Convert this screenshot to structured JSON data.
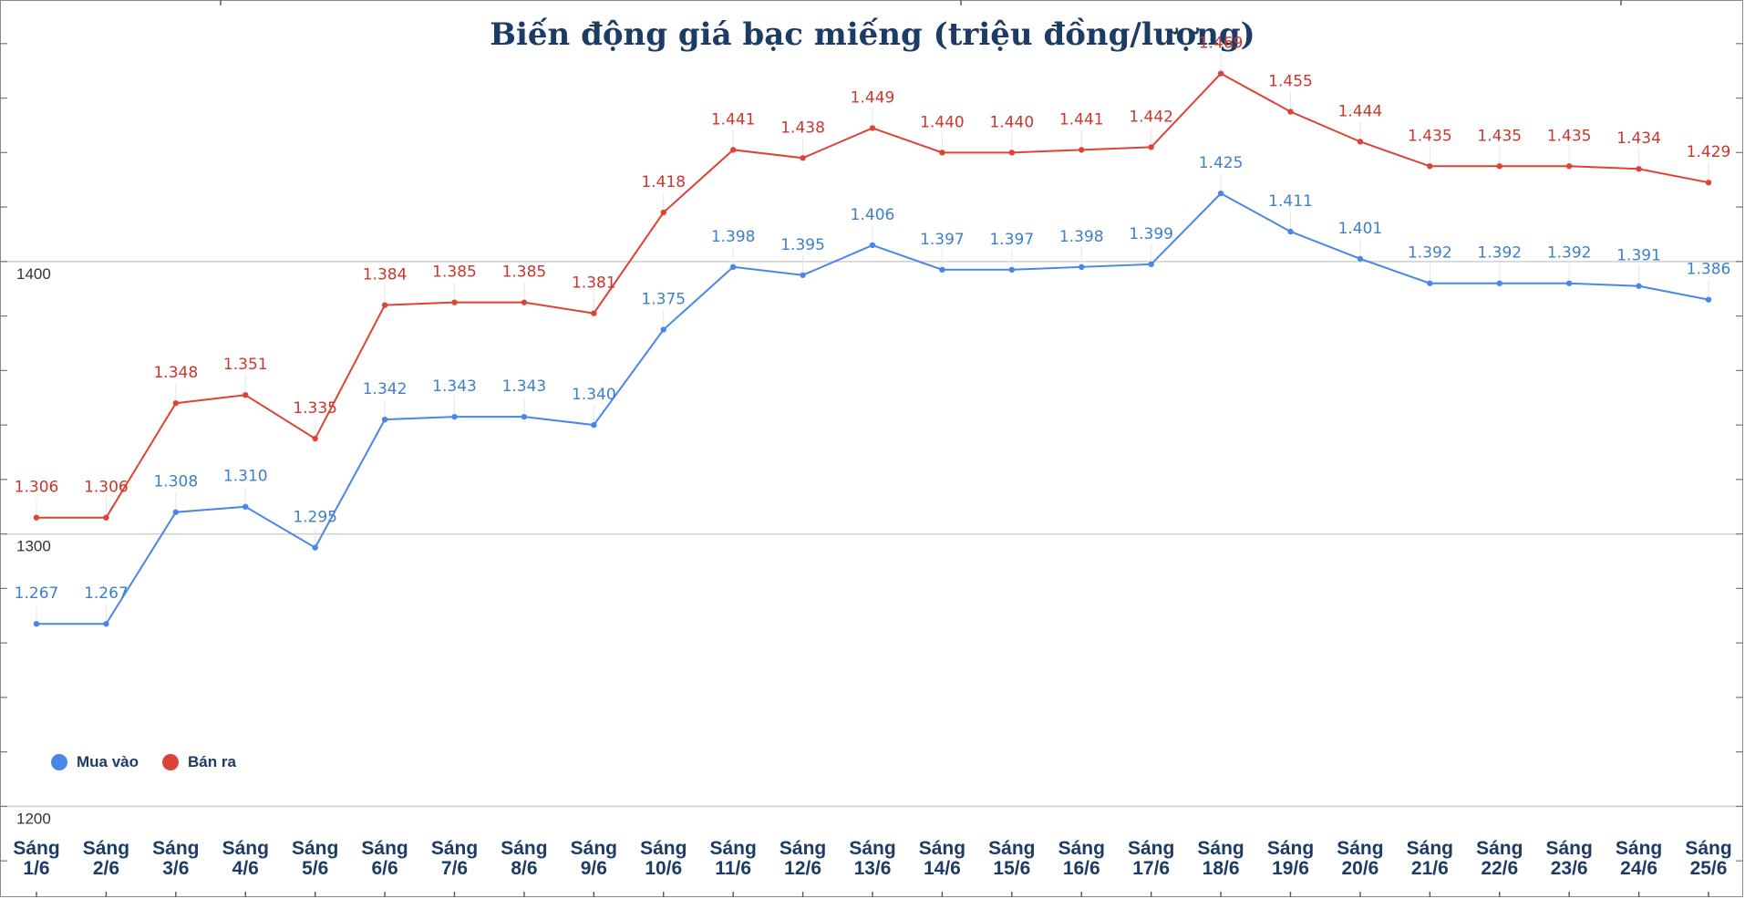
{
  "chart_data": {
    "type": "line",
    "title": "Biến động giá bạc miếng (triệu đồng/lượng)",
    "xlabel": "",
    "ylabel": "",
    "ylim": [
      1166,
      1496
    ],
    "y_ticks": [
      1200,
      1300,
      1400
    ],
    "grid": true,
    "legend_position": "bottom-left",
    "categories": [
      [
        "Sáng",
        "1/6"
      ],
      [
        "Sáng",
        "2/6"
      ],
      [
        "Sáng",
        "3/6"
      ],
      [
        "Sáng",
        "4/6"
      ],
      [
        "Sáng",
        "5/6"
      ],
      [
        "Sáng",
        "6/6"
      ],
      [
        "Sáng",
        "7/6"
      ],
      [
        "Sáng",
        "8/6"
      ],
      [
        "Sáng",
        "9/6"
      ],
      [
        "Sáng",
        "10/6"
      ],
      [
        "Sáng",
        "11/6"
      ],
      [
        "Sáng",
        "12/6"
      ],
      [
        "Sáng",
        "13/6"
      ],
      [
        "Sáng",
        "14/6"
      ],
      [
        "Sáng",
        "15/6"
      ],
      [
        "Sáng",
        "16/6"
      ],
      [
        "Sáng",
        "17/6"
      ],
      [
        "Sáng",
        "18/6"
      ],
      [
        "Sáng",
        "19/6"
      ],
      [
        "Sáng",
        "20/6"
      ],
      [
        "Sáng",
        "21/6"
      ],
      [
        "Sáng",
        "22/6"
      ],
      [
        "Sáng",
        "23/6"
      ],
      [
        "Sáng",
        "24/6"
      ],
      [
        "Sáng",
        "25/6"
      ]
    ],
    "series": [
      {
        "name": "Mua vào",
        "color": "#4a86e8",
        "label_color": "#3d7fc9",
        "values": [
          1267,
          1267,
          1308,
          1310,
          1295,
          1342,
          1343,
          1343,
          1340,
          1375,
          1398,
          1395,
          1406,
          1397,
          1397,
          1398,
          1399,
          1425,
          1411,
          1401,
          1392,
          1392,
          1392,
          1391,
          1386
        ],
        "labels": [
          "1.267",
          "1.267",
          "1.308",
          "1.310",
          "1.295",
          "1.342",
          "1.343",
          "1.343",
          "1.340",
          "1.375",
          "1.398",
          "1.395",
          "1.406",
          "1.397",
          "1.397",
          "1.398",
          "1.399",
          "1.425",
          "1.411",
          "1.401",
          "1.392",
          "1.392",
          "1.392",
          "1.391",
          "1.386"
        ]
      },
      {
        "name": "Bán ra",
        "color": "#db4437",
        "label_color": "#c9362b",
        "values": [
          1306,
          1306,
          1348,
          1351,
          1335,
          1384,
          1385,
          1385,
          1381,
          1418,
          1441,
          1438,
          1449,
          1440,
          1440,
          1441,
          1442,
          1469,
          1455,
          1444,
          1435,
          1435,
          1435,
          1434,
          1429
        ],
        "labels": [
          "1.306",
          "1.306",
          "1.348",
          "1.351",
          "1.335",
          "1.384",
          "1.385",
          "1.385",
          "1.381",
          "1.418",
          "1.441",
          "1.438",
          "1.449",
          "1.440",
          "1.440",
          "1.441",
          "1.442",
          "1.469",
          "1.455",
          "1.444",
          "1.435",
          "1.435",
          "1.435",
          "1.434",
          "1.429"
        ]
      }
    ]
  }
}
